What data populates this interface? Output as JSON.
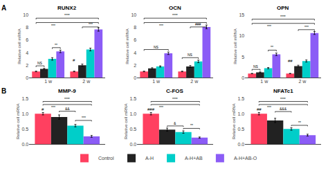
{
  "chart_data": [
    {
      "type": "bar",
      "title": "RUNX2",
      "ylabel": "Relative cell mRNA",
      "panel_label": "A",
      "legend": "bottom",
      "grid": false,
      "categories": [
        "1 w",
        "2 w"
      ],
      "series": [
        {
          "name": "Control",
          "color": "#FF4060",
          "values": [
            1.0,
            1.0
          ],
          "errors": [
            0.05,
            0.05
          ]
        },
        {
          "name": "A-H",
          "color": "#222222",
          "values": [
            1.4,
            2.0
          ],
          "errors": [
            0.1,
            0.18
          ]
        },
        {
          "name": "A-H+AB",
          "color": "#00CEC9",
          "values": [
            3.0,
            4.5
          ],
          "errors": [
            0.2,
            0.22
          ]
        },
        {
          "name": "A-H+AB-O",
          "color": "#8B5CF6",
          "values": [
            4.2,
            7.7
          ],
          "errors": [
            0.2,
            0.28
          ]
        }
      ],
      "ylim": [
        0,
        10
      ],
      "yticks": [
        0,
        2,
        4,
        6,
        8,
        10
      ],
      "annotations": [
        {
          "text": "NS",
          "y": 1.9,
          "from": {
            "x": 0,
            "series": "Control"
          },
          "to": {
            "x": 0,
            "series": "A-H"
          }
        },
        {
          "text": "**",
          "y": 4.8,
          "from": {
            "x": 0,
            "series": "A-H+AB"
          },
          "to": {
            "x": 0,
            "series": "A-H+AB-O"
          }
        },
        {
          "text": "***",
          "y": 8.8,
          "from": {
            "x": 0,
            "series": "Control"
          },
          "to": {
            "x": 1,
            "series": "A-H+AB-O"
          }
        },
        {
          "text": "****",
          "y": 9.5,
          "from": {
            "x": 0,
            "series": "Control"
          },
          "to": {
            "x": 1,
            "series": "A-H+AB-O"
          }
        },
        {
          "text": "***",
          "y": 8.1,
          "from": {
            "x": 1,
            "series": "A-H"
          },
          "to": {
            "x": 1,
            "series": "A-H+AB-O"
          }
        },
        {
          "text": "#",
          "y": 2.3,
          "x": 1,
          "series": "Control"
        }
      ]
    },
    {
      "type": "bar",
      "title": "OCN",
      "ylabel": "Relative cell mRNA",
      "grid": false,
      "categories": [
        "1 w",
        "2 w"
      ],
      "series": [
        {
          "name": "Control",
          "color": "#FF4060",
          "values": [
            1.0,
            1.0
          ],
          "errors": [
            0.05,
            0.05
          ]
        },
        {
          "name": "A-H",
          "color": "#222222",
          "values": [
            1.5,
            1.8
          ],
          "errors": [
            0.1,
            0.15
          ]
        },
        {
          "name": "A-H+AB",
          "color": "#00CEC9",
          "values": [
            1.8,
            2.6
          ],
          "errors": [
            0.1,
            0.2
          ]
        },
        {
          "name": "A-H+AB-O",
          "color": "#8B5CF6",
          "values": [
            3.9,
            8.1
          ],
          "errors": [
            0.2,
            0.3
          ]
        }
      ],
      "ylim": [
        0,
        10
      ],
      "yticks": [
        0,
        2,
        4,
        6,
        8,
        10
      ],
      "annotations": [
        {
          "text": "NS",
          "y": 4.5,
          "from": {
            "x": 0,
            "series": "Control"
          },
          "to": {
            "x": 0,
            "series": "A-H+AB-O"
          }
        },
        {
          "text": "NS",
          "y": 3.2,
          "from": {
            "x": 1,
            "series": "Control"
          },
          "to": {
            "x": 1,
            "series": "A-H+AB"
          }
        },
        {
          "text": "***",
          "y": 8.8,
          "from": {
            "x": 0,
            "series": "Control"
          },
          "to": {
            "x": 1,
            "series": "A-H+AB-O"
          }
        },
        {
          "text": "****",
          "y": 9.5,
          "from": {
            "x": 0,
            "series": "Control"
          },
          "to": {
            "x": 1,
            "series": "A-H+AB-O"
          }
        },
        {
          "text": "###",
          "y": 8.1,
          "from": {
            "x": 1,
            "series": "A-H"
          },
          "to": {
            "x": 1,
            "series": "A-H+AB-O"
          }
        }
      ]
    },
    {
      "type": "bar",
      "title": "OPN",
      "ylabel": "Relative cell mRNA",
      "grid": false,
      "categories": [
        "1 w",
        "2 w"
      ],
      "series": [
        {
          "name": "Control",
          "color": "#FF4060",
          "values": [
            1.0,
            1.0
          ],
          "errors": [
            0.05,
            0.05
          ]
        },
        {
          "name": "A-H",
          "color": "#222222",
          "values": [
            1.3,
            2.8
          ],
          "errors": [
            0.1,
            0.2
          ]
        },
        {
          "name": "A-H+AB",
          "color": "#00CEC9",
          "values": [
            2.3,
            4.0
          ],
          "errors": [
            0.15,
            0.25
          ]
        },
        {
          "name": "A-H+AB-O",
          "color": "#8B5CF6",
          "values": [
            5.6,
            10.7
          ],
          "errors": [
            0.3,
            0.35
          ]
        }
      ],
      "ylim": [
        0,
        15
      ],
      "yticks": [
        0,
        5,
        10,
        15
      ],
      "annotations": [
        {
          "text": "NS",
          "y": 2.0,
          "from": {
            "x": 0,
            "series": "Control"
          },
          "to": {
            "x": 0,
            "series": "A-H"
          }
        },
        {
          "text": "**",
          "y": 6.6,
          "from": {
            "x": 0,
            "series": "A-H+AB"
          },
          "to": {
            "x": 0,
            "series": "A-H+AB-O"
          }
        },
        {
          "text": "***",
          "y": 13.0,
          "from": {
            "x": 0,
            "series": "Control"
          },
          "to": {
            "x": 1,
            "series": "A-H+AB-O"
          }
        },
        {
          "text": "****",
          "y": 14.0,
          "from": {
            "x": 0,
            "series": "Control"
          },
          "to": {
            "x": 1,
            "series": "A-H+AB-O"
          }
        },
        {
          "text": "***",
          "y": 11.5,
          "from": {
            "x": 1,
            "series": "A-H"
          },
          "to": {
            "x": 1,
            "series": "A-H+AB-O"
          }
        },
        {
          "text": "##",
          "y": 3.4,
          "x": 1,
          "series": "Control"
        }
      ]
    },
    {
      "type": "bar",
      "title": "MMP-9",
      "ylabel": "Relative cell mRNA",
      "panel_label": "B",
      "grid": false,
      "categories": [
        null
      ],
      "series": [
        {
          "name": "Control",
          "color": "#FF4060",
          "values": [
            1.0
          ],
          "errors": [
            0.04
          ]
        },
        {
          "name": "A-H",
          "color": "#222222",
          "values": [
            0.89
          ],
          "errors": [
            0.07
          ]
        },
        {
          "name": "A-H+AB",
          "color": "#00CEC9",
          "values": [
            0.61
          ],
          "errors": [
            0.04
          ]
        },
        {
          "name": "A-H+AB-O",
          "color": "#8B5CF6",
          "values": [
            0.26
          ],
          "errors": [
            0.03
          ]
        }
      ],
      "ylim": [
        0,
        1.5
      ],
      "yticks": [
        {
          "value": 0,
          "label": "0.0"
        },
        0.5,
        {
          "value": 1,
          "label": "1.0"
        },
        1.5
      ],
      "annotations": [
        {
          "text": "#",
          "y": 1.04,
          "x": 0,
          "series": "Control"
        },
        {
          "text": "&&",
          "y": 1.08,
          "from": {
            "x": 0,
            "series": "A-H"
          },
          "to": {
            "x": 0,
            "series": "A-H+AB"
          }
        },
        {
          "text": "***",
          "y": 1.3,
          "from": {
            "x": 0,
            "series": "Control"
          },
          "to": {
            "x": 0,
            "series": "A-H+AB-O"
          }
        },
        {
          "text": "****",
          "y": 1.4,
          "from": {
            "x": 0,
            "series": "Control"
          },
          "to": {
            "x": 0,
            "series": "A-H+AB-O"
          }
        },
        {
          "text": "***",
          "y": 0.78,
          "from": {
            "x": 0,
            "series": "A-H+AB"
          },
          "to": {
            "x": 0,
            "series": "A-H+AB-O"
          }
        }
      ]
    },
    {
      "type": "bar",
      "title": "C-FOS",
      "ylabel": "Relative cell mRNA",
      "grid": false,
      "categories": [
        null
      ],
      "series": [
        {
          "name": "Control",
          "color": "#FF4060",
          "values": [
            1.0
          ],
          "errors": [
            0.04
          ]
        },
        {
          "name": "A-H",
          "color": "#222222",
          "values": [
            0.48
          ],
          "errors": [
            0.05
          ]
        },
        {
          "name": "A-H+AB",
          "color": "#00CEC9",
          "values": [
            0.4
          ],
          "errors": [
            0.04
          ]
        },
        {
          "name": "A-H+AB-O",
          "color": "#8B5CF6",
          "values": [
            0.22
          ],
          "errors": [
            0.02
          ]
        }
      ],
      "ylim": [
        0,
        1.5
      ],
      "yticks": [
        {
          "value": 0,
          "label": "0.0"
        },
        0.5,
        {
          "value": 1,
          "label": "1.0"
        },
        1.5
      ],
      "annotations": [
        {
          "text": "###",
          "y": 1.04,
          "x": 0,
          "series": "Control"
        },
        {
          "text": "&",
          "y": 0.6,
          "from": {
            "x": 0,
            "series": "A-H"
          },
          "to": {
            "x": 0,
            "series": "A-H+AB"
          }
        },
        {
          "text": "**",
          "y": 0.52,
          "from": {
            "x": 0,
            "series": "A-H+AB"
          },
          "to": {
            "x": 0,
            "series": "A-H+AB-O"
          }
        },
        {
          "text": "***",
          "y": 1.3,
          "from": {
            "x": 0,
            "series": "Control"
          },
          "to": {
            "x": 0,
            "series": "A-H+AB-O"
          }
        },
        {
          "text": "****",
          "y": 1.4,
          "from": {
            "x": 0,
            "series": "Control"
          },
          "to": {
            "x": 0,
            "series": "A-H+AB-O"
          }
        }
      ]
    },
    {
      "type": "bar",
      "title": "NFATc1",
      "ylabel": "Relative cell mRNA",
      "grid": false,
      "categories": [
        null
      ],
      "series": [
        {
          "name": "Control",
          "color": "#FF4060",
          "values": [
            1.0
          ],
          "errors": [
            0.04
          ]
        },
        {
          "name": "A-H",
          "color": "#222222",
          "values": [
            0.78
          ],
          "errors": [
            0.07
          ]
        },
        {
          "name": "A-H+AB",
          "color": "#00CEC9",
          "values": [
            0.5
          ],
          "errors": [
            0.04
          ]
        },
        {
          "name": "A-H+AB-O",
          "color": "#8B5CF6",
          "values": [
            0.3
          ],
          "errors": [
            0.03
          ]
        }
      ],
      "ylim": [
        0,
        1.5
      ],
      "yticks": [
        {
          "value": 0,
          "label": "0.0"
        },
        0.5,
        {
          "value": 1,
          "label": "1.0"
        },
        1.5
      ],
      "annotations": [
        {
          "text": "##",
          "y": 1.04,
          "x": 0,
          "series": "Control"
        },
        {
          "text": "&&&",
          "y": 1.07,
          "from": {
            "x": 0,
            "series": "A-H"
          },
          "to": {
            "x": 0,
            "series": "A-H+AB"
          }
        },
        {
          "text": "**",
          "y": 0.62,
          "from": {
            "x": 0,
            "series": "A-H+AB"
          },
          "to": {
            "x": 0,
            "series": "A-H+AB-O"
          }
        },
        {
          "text": "***",
          "y": 1.3,
          "from": {
            "x": 0,
            "series": "Control"
          },
          "to": {
            "x": 0,
            "series": "A-H+AB-O"
          }
        },
        {
          "text": "****",
          "y": 1.4,
          "from": {
            "x": 0,
            "series": "Control"
          },
          "to": {
            "x": 0,
            "series": "A-H+AB-O"
          }
        }
      ]
    }
  ]
}
